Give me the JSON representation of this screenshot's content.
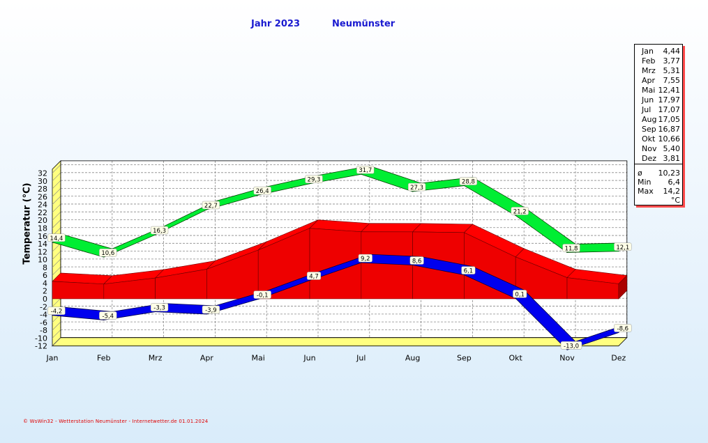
{
  "title": {
    "year_label": "Jahr  2023",
    "station": "Neumünster"
  },
  "chart_data": {
    "type": "line",
    "ylabel": "Temperatur  (°C)",
    "xlabel": "",
    "categories": [
      "Jan",
      "Feb",
      "Mrz",
      "Apr",
      "Mai",
      "Jun",
      "Jul",
      "Aug",
      "Sep",
      "Okt",
      "Nov",
      "Dez"
    ],
    "ylim": [
      -12,
      33
    ],
    "yticks": [
      -12,
      -10,
      -8,
      -6,
      -4,
      -2,
      0,
      2,
      4,
      6,
      8,
      10,
      12,
      14,
      16,
      18,
      20,
      22,
      24,
      26,
      28,
      30,
      32
    ],
    "grid": true,
    "series": [
      {
        "role": "max",
        "color": "#00ee33",
        "values": [
          14.4,
          10.6,
          16.3,
          22.7,
          26.4,
          29.3,
          31.7,
          27.3,
          28.8,
          21.2,
          11.8,
          12.1
        ],
        "labels": [
          "14,4",
          "10,6",
          "16,3",
          "22,7",
          "26,4",
          "29,3",
          "31,7",
          "27,3",
          "28,8",
          "21,2",
          "11,8",
          "12,1"
        ]
      },
      {
        "role": "mean",
        "color": "#ee0000",
        "values": [
          4.44,
          3.77,
          5.31,
          7.55,
          12.41,
          17.97,
          17.07,
          17.05,
          16.87,
          10.66,
          5.4,
          3.81
        ]
      },
      {
        "role": "min",
        "color": "#0000ee",
        "values": [
          -4.2,
          -5.4,
          -3.3,
          -3.9,
          -0.1,
          4.7,
          9.2,
          8.6,
          6.1,
          0.1,
          -13.0,
          -8.6
        ],
        "labels": [
          "-4,2",
          "-5,4",
          "-3,3",
          "-3,9",
          "-0,1",
          "4,7",
          "9,2",
          "8,6",
          "6,1",
          "0,1",
          "-13,0",
          "-8,6"
        ]
      }
    ]
  },
  "stats": {
    "monthly": [
      {
        "month": "Jan",
        "value": "4,44"
      },
      {
        "month": "Feb",
        "value": "3,77"
      },
      {
        "month": "Mrz",
        "value": "5,31"
      },
      {
        "month": "Apr",
        "value": "7,55"
      },
      {
        "month": "Mai",
        "value": "12,41"
      },
      {
        "month": "Jun",
        "value": "17,97"
      },
      {
        "month": "Jul",
        "value": "17,07"
      },
      {
        "month": "Aug",
        "value": "17,05"
      },
      {
        "month": "Sep",
        "value": "16,87"
      },
      {
        "month": "Okt",
        "value": "10,66"
      },
      {
        "month": "Nov",
        "value": "5,40"
      },
      {
        "month": "Dez",
        "value": "3,81"
      }
    ],
    "summary": [
      {
        "key": "ø",
        "value": "10,23"
      },
      {
        "key": "Min",
        "value": "6,4"
      },
      {
        "key": "Max",
        "value": "14,2"
      }
    ],
    "unit": "°C"
  },
  "footer": "© WsWin32 - Wetterstation Neumünster - Internetwetter.de  01.01.2024"
}
